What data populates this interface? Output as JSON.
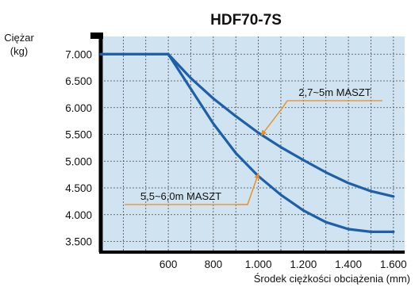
{
  "chart_data": {
    "type": "line",
    "title": "HDF70-7S",
    "ylabel_line1": "Ciężar",
    "ylabel_line2": "(kg)",
    "xlabel": "Środek ciężkości obciążenia (mm)",
    "x_ticks": [
      {
        "value": 600,
        "label": "600"
      },
      {
        "value": 800,
        "label": "800"
      },
      {
        "value": 1000,
        "label": "1.000"
      },
      {
        "value": 1200,
        "label": "1.200"
      },
      {
        "value": 1400,
        "label": "1.400"
      },
      {
        "value": 1600,
        "label": "1.600"
      }
    ],
    "y_ticks": [
      {
        "value": 7000,
        "label": "7.000"
      },
      {
        "value": 6500,
        "label": "6.500"
      },
      {
        "value": 6000,
        "label": "6.000"
      },
      {
        "value": 5500,
        "label": "5.500"
      },
      {
        "value": 5000,
        "label": "5.000"
      },
      {
        "value": 4500,
        "label": "4.500"
      },
      {
        "value": 4000,
        "label": "4.000"
      },
      {
        "value": 3500,
        "label": "3.500"
      }
    ],
    "xlim": [
      300,
      1650
    ],
    "ylim": [
      3300,
      7330
    ],
    "grid": true,
    "series": [
      {
        "name": "2,7~5m MASZT",
        "x": [
          300,
          600,
          700,
          800,
          900,
          1000,
          1100,
          1200,
          1300,
          1400,
          1500,
          1600
        ],
        "y": [
          7000,
          7000,
          6550,
          6170,
          5840,
          5530,
          5260,
          5020,
          4790,
          4590,
          4440,
          4340
        ]
      },
      {
        "name": "5,5~6,0m MASZT",
        "x": [
          300,
          600,
          700,
          800,
          900,
          1000,
          1100,
          1200,
          1300,
          1400,
          1500,
          1600
        ],
        "y": [
          7000,
          7000,
          6350,
          5700,
          5150,
          4720,
          4370,
          4080,
          3860,
          3730,
          3680,
          3680
        ]
      }
    ],
    "annotations": [
      {
        "label": "2,7~5m MASZT",
        "x": 1000,
        "y": 5530
      },
      {
        "label": "5,5~6,0m MASZT",
        "x": 1000,
        "y": 4720
      }
    ],
    "colors": {
      "plot_background": "#cfe3f0",
      "grid": "#4a4a4a",
      "axis": "#000000",
      "line": "#1d5fa8",
      "annotation_leader": "#f08a1c",
      "annotation_box_border": "#f08a1c",
      "annotation_box_fill": "#ffffff"
    }
  }
}
